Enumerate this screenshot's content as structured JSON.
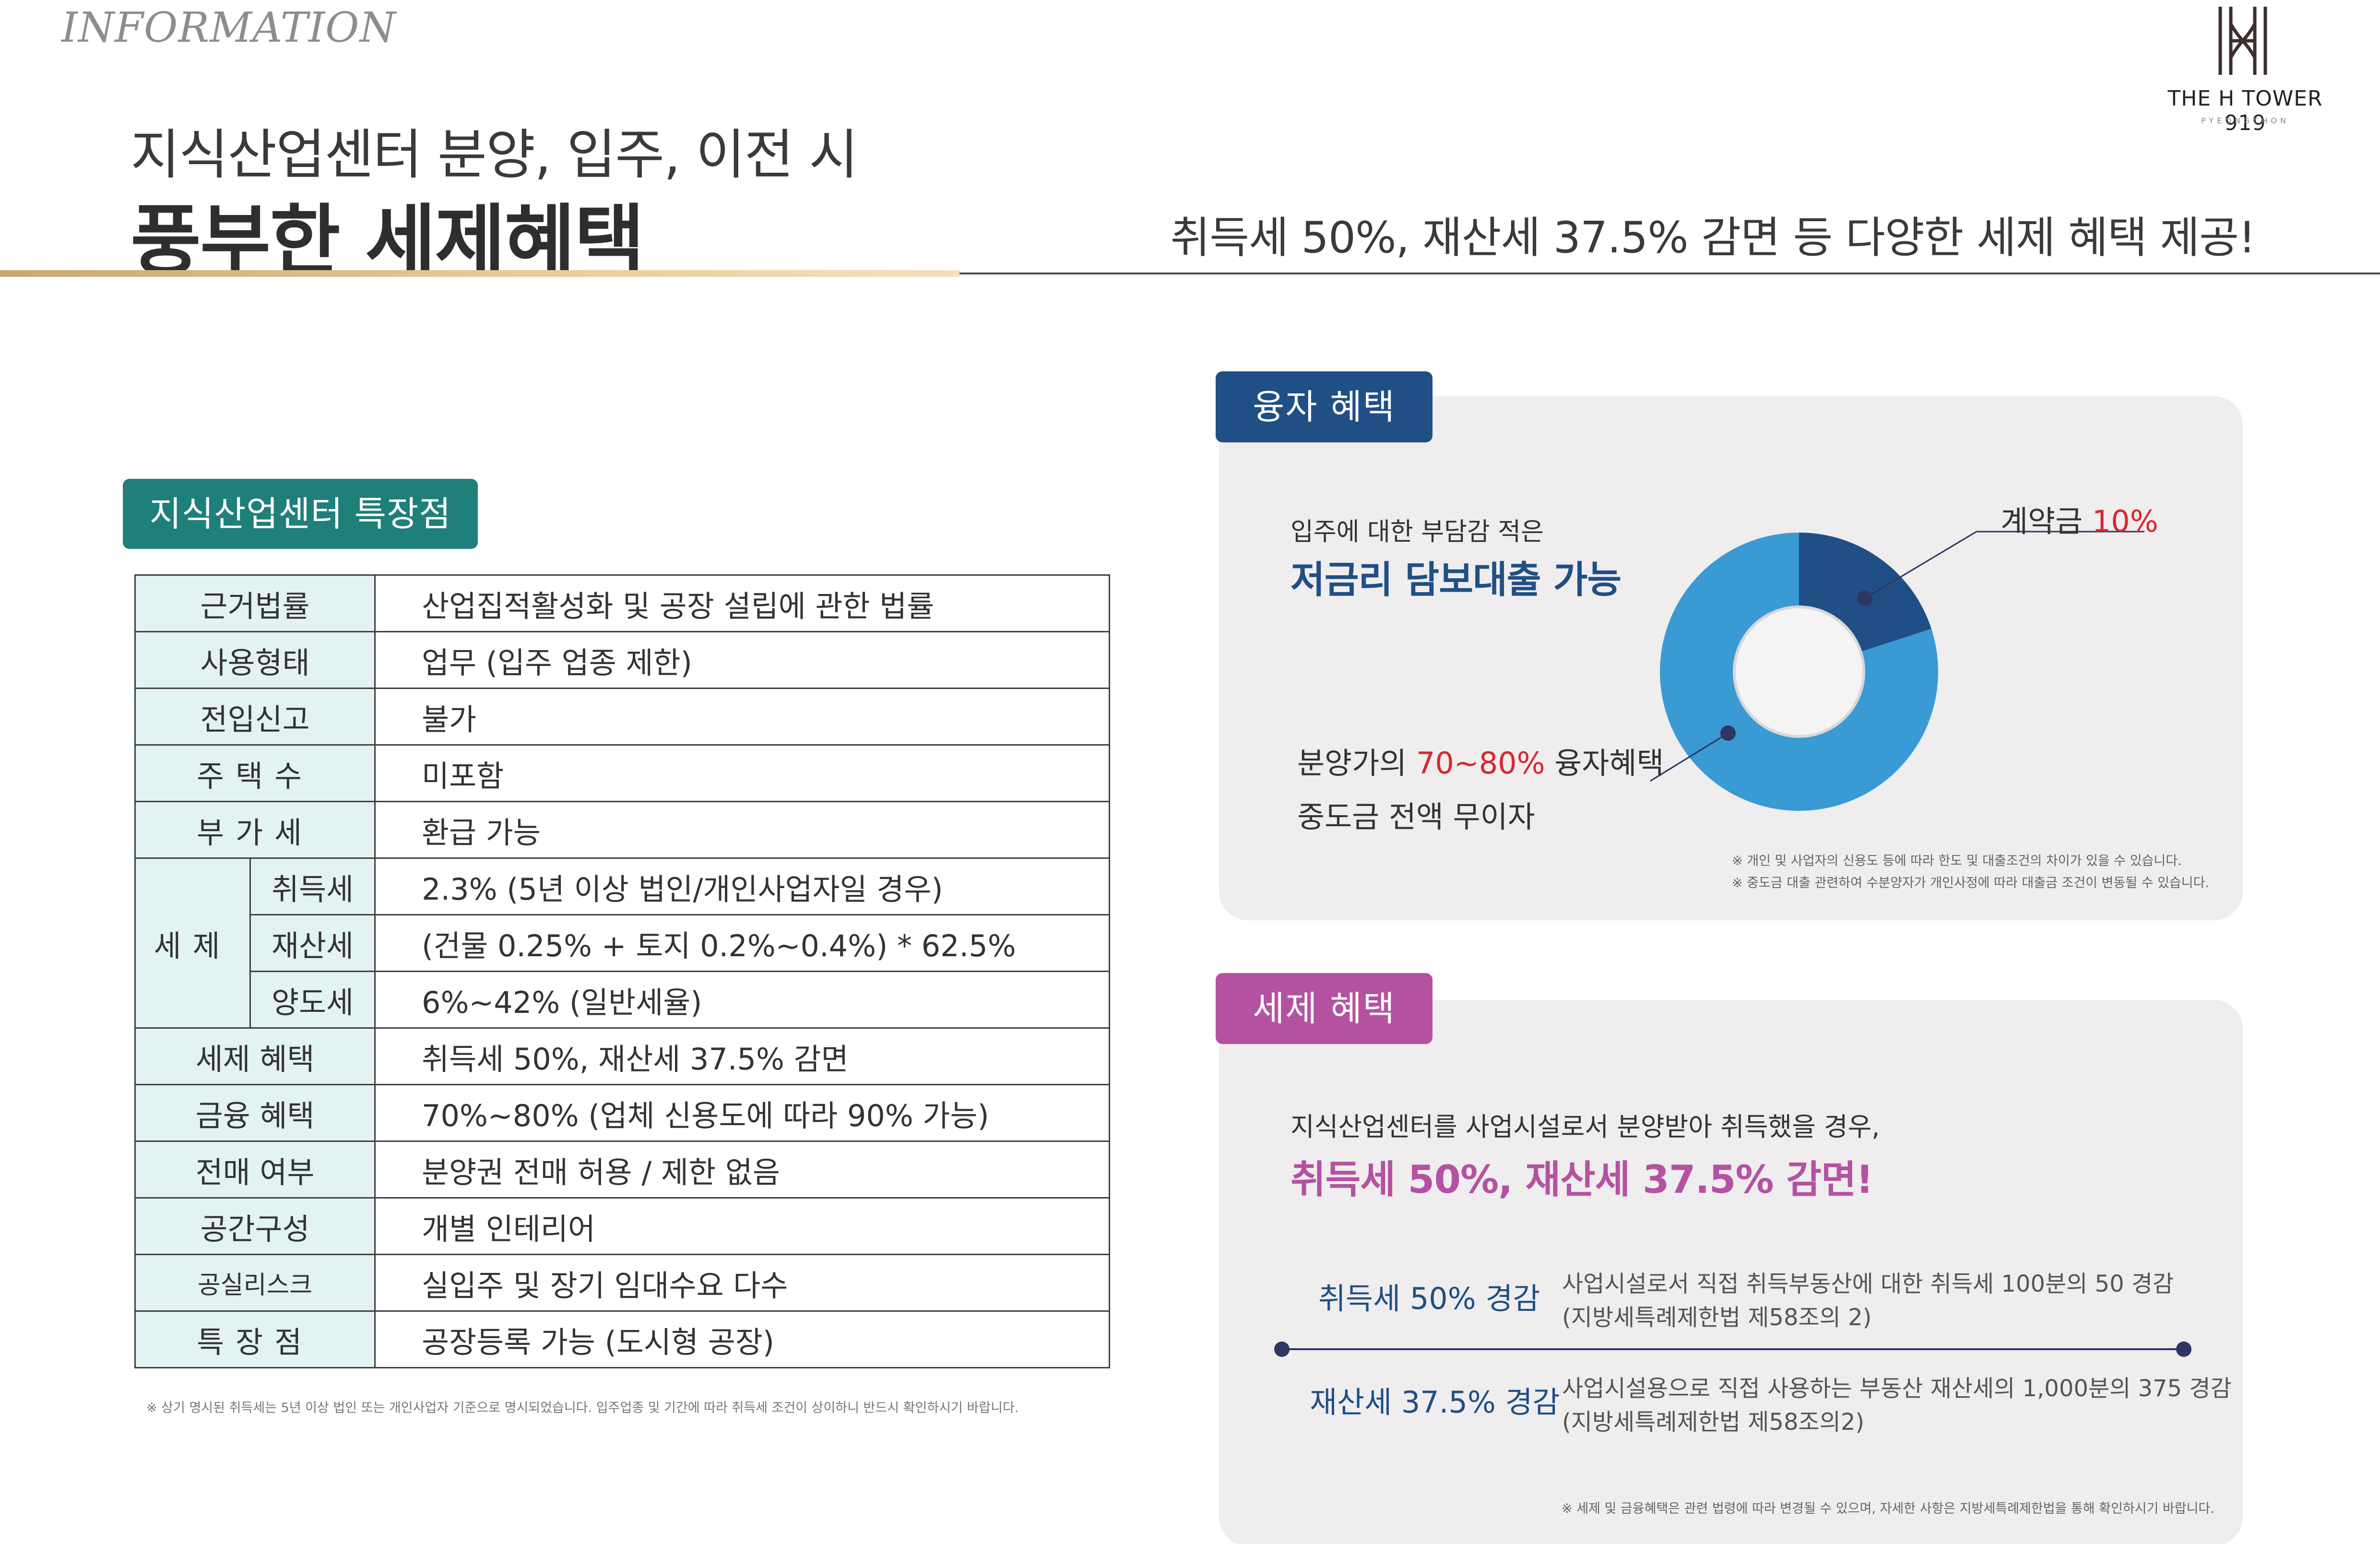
{
  "header": {
    "section_label": "INFORMATION",
    "title_line1": "지식산업센터 분양, 입주, 이전 시",
    "title_line2": "풍부한 세제혜택",
    "subtitle": "취득세 50%, 재산세 37.5% 감면 등 다양한 세제 혜택 제공!"
  },
  "logo": {
    "name": "THE H TOWER 919",
    "location": "PYEONGCHON"
  },
  "features": {
    "tag": "지식산업센터 특장점",
    "rows": [
      {
        "label": "근거법률",
        "value": "산업집적활성화 및 공장 설립에 관한 법률"
      },
      {
        "label": "사용형태",
        "value": "업무 (입주 업종 제한)"
      },
      {
        "label": "전입신고",
        "value": "불가"
      },
      {
        "label": "주택수",
        "value": "미포함"
      },
      {
        "label": "부가세",
        "value": "환급 가능"
      }
    ],
    "tax_group": {
      "label": "세제",
      "rows": [
        {
          "label": "취득세",
          "value": "2.3% (5년 이상 법인/개인사업자일 경우)"
        },
        {
          "label": "재산세",
          "value": "(건물 0.25% + 토지 0.2%~0.4%) * 62.5%"
        },
        {
          "label": "양도세",
          "value": "6%~42% (일반세율)"
        }
      ]
    },
    "rows_after": [
      {
        "label": "세제 혜택",
        "value": "취득세 50%, 재산세 37.5% 감면"
      },
      {
        "label": "금융 혜택",
        "value": "70%~80% (업체 신용도에 따라 90% 가능)"
      },
      {
        "label": "전매 여부",
        "value": "분양권 전매 허용 / 제한 없음"
      },
      {
        "label": "공간구성",
        "value": "개별 인테리어"
      },
      {
        "label": "공실리스크",
        "value": "실입주 및 장기 임대수요 다수"
      },
      {
        "label": "특장점",
        "value": "공장등록 가능 (도시형 공장)"
      }
    ],
    "note": "※ 상기 명시된 취득세는 5년 이상 법인 또는 개인사업자 기준으로 명시되었습니다. 입주업종 및 기간에 따라 취득세 조건이 상이하니 반드시 확인하시기 바랍니다."
  },
  "loan": {
    "tab": "융자 혜택",
    "lead": "입주에 대한 부담감 적은",
    "headline": "저금리 담보대출 가능",
    "bullet1_prefix": "분양가의 ",
    "bullet1_highlight": "70~80%",
    "bullet1_suffix": " 융자혜택",
    "bullet2": "중도금 전액 무이자",
    "contract_prefix": "계약금 ",
    "contract_highlight": "10%",
    "notes": [
      "※ 개인 및 사업자의 신용도 등에 따라 한도 및 대출조건의 차이가 있을 수 있습니다.",
      "※ 중도금 대출 관련하여 수분양자가 개인사정에 따라 대출금 조건이 변동될 수 있습니다."
    ],
    "donut": {
      "contract_share": 0.1,
      "loan_share": 0.9,
      "colors": {
        "contract": "#1f4f85",
        "loan": "#3a9ad3",
        "center": "#f4f4f4"
      }
    }
  },
  "tax": {
    "tab": "세제 혜택",
    "lead": "지식산업센터를 사업시설로서 분양받아 취득했을 경우,",
    "headline": "취득세 50%, 재산세 37.5% 감면!",
    "items": [
      {
        "label": "취득세 50% 경감",
        "desc1": "사업시설로서 직접 취득부동산에 대한 취득세 100분의 50 경감",
        "desc2": "(지방세특례제한법 제58조의 2)"
      },
      {
        "label": "재산세 37.5% 경감",
        "desc1": "사업시설용으로 직접 사용하는 부동산 재산세의 1,000분의 375 경감",
        "desc2": "(지방세특례제한법 제58조의2)"
      }
    ],
    "note": "※ 세제 및 금융혜택은 관련 법령에 따라 변경될 수 있으며, 자세한 사항은 지방세특례제한법을 통해 확인하시기 바랍니다."
  },
  "colors": {
    "teal": "#1f7f7b",
    "navy": "#1f4f85",
    "magenta": "#b452a1",
    "red": "#d7262e",
    "gold": "#c9a870"
  }
}
